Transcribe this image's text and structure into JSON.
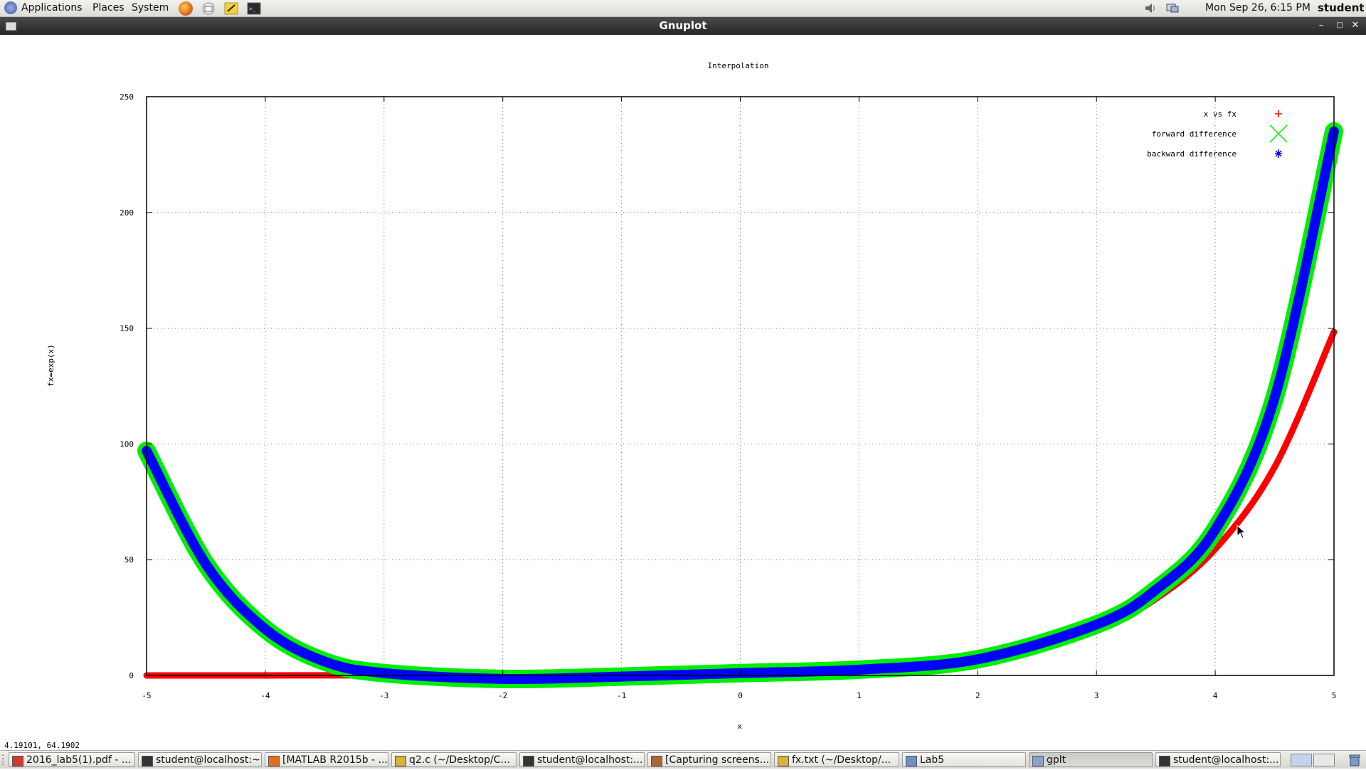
{
  "panel": {
    "menus": [
      "Applications",
      "Places",
      "System"
    ],
    "launchers": [
      "firefox-icon",
      "mail-icon",
      "notes-icon",
      "terminal-icon"
    ],
    "clock": "Mon Sep 26,  6:15 PM",
    "user": "student"
  },
  "window": {
    "title": "Gnuplot"
  },
  "coordinates_readout": "4.19101,  64.1902",
  "chart_data": {
    "type": "line",
    "title": "Interpolation",
    "xlabel": "x",
    "ylabel": "fx=exp(x)",
    "xlim": [
      -5,
      5
    ],
    "ylim": [
      0,
      250
    ],
    "x_ticks": [
      "-5",
      "-4",
      "-3",
      "-2",
      "-1",
      "0",
      "1",
      "2",
      "3",
      "4",
      "5"
    ],
    "y_ticks": [
      "0",
      "50",
      "100",
      "150",
      "200",
      "250"
    ],
    "grid": true,
    "legend_position": "top-right",
    "series": [
      {
        "name": "x vs fx",
        "color": "#ff0000",
        "marker": "plus",
        "x": [
          -5,
          -4,
          -3,
          -2,
          -1,
          0,
          1,
          2,
          3,
          3.5,
          4,
          4.5,
          5
        ],
        "y": [
          0.0067,
          0.018,
          0.05,
          0.135,
          0.37,
          1,
          2.72,
          7.39,
          20.1,
          33.1,
          54.6,
          90.0,
          148.4
        ]
      },
      {
        "name": "forward difference",
        "color": "#00ee00",
        "marker": "cross",
        "x": [
          -5,
          -4.5,
          -4,
          -3.5,
          -3,
          -2,
          -1,
          0,
          1,
          2,
          3,
          3.5,
          4,
          4.5,
          5
        ],
        "y": [
          97,
          48,
          20,
          6,
          1,
          -1.5,
          -0.5,
          1,
          2.5,
          7,
          22,
          37,
          63,
          120,
          235
        ]
      },
      {
        "name": "backward difference",
        "color": "#0000ff",
        "marker": "asterisk",
        "x": [
          -5,
          -4.5,
          -4,
          -3.5,
          -3,
          -2,
          -1,
          0,
          1,
          2,
          3,
          3.5,
          4,
          4.5,
          5
        ],
        "y": [
          97,
          48,
          20,
          6,
          1,
          -1.5,
          -0.5,
          1,
          2.5,
          7,
          22,
          37,
          63,
          120,
          235
        ]
      }
    ]
  },
  "taskbar": {
    "items": [
      {
        "label": "2016_lab5(1).pdf - ...",
        "icon": "pdf-icon",
        "active": false
      },
      {
        "label": "student@localhost:~",
        "icon": "terminal-icon",
        "active": false
      },
      {
        "label": "[MATLAB R2015b - ...",
        "icon": "matlab-icon",
        "active": false
      },
      {
        "label": "q2.c (~/Desktop/C...",
        "icon": "text-editor-icon",
        "active": false
      },
      {
        "label": "student@localhost:...",
        "icon": "terminal-icon",
        "active": false
      },
      {
        "label": "[Capturing screens...",
        "icon": "camera-icon",
        "active": false
      },
      {
        "label": "fx.txt (~/Desktop/...",
        "icon": "text-editor-icon",
        "active": false
      },
      {
        "label": "Lab5",
        "icon": "folder-icon",
        "active": false
      },
      {
        "label": "gplt",
        "icon": "window-icon",
        "active": true
      },
      {
        "label": "student@localhost:...",
        "icon": "terminal-icon",
        "active": false
      }
    ]
  }
}
